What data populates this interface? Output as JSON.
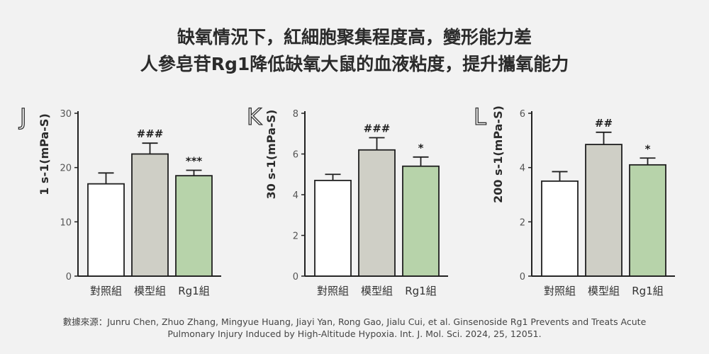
{
  "title": {
    "line1": "缺氧情況下，紅細胞聚集程度高，變形能力差",
    "line2": "人參皂苷Rg1降低缺氧大鼠的血液粘度，提升攜氧能力"
  },
  "colors": {
    "background": "#f2f2f2",
    "control_bar": "#ffffff",
    "model_bar": "#cfcfc6",
    "rg1_bar": "#b7d3aa",
    "axis": "#222222",
    "tick_text": "#555555"
  },
  "chart_data": [
    {
      "type": "bar",
      "panel_label": "J",
      "ylabel": "1 s-1(mPa-S)",
      "categories": [
        "對照組",
        "模型組",
        "Rg1組"
      ],
      "values": [
        17,
        22.5,
        18.5
      ],
      "errors": [
        2,
        2,
        1
      ],
      "annotations": [
        "",
        "###",
        "***"
      ],
      "ylim": [
        0,
        30
      ],
      "yticks": [
        0,
        10,
        20,
        30
      ]
    },
    {
      "type": "bar",
      "panel_label": "K",
      "ylabel": "30 s-1(mPa-S)",
      "categories": [
        "對照組",
        "模型組",
        "Rg1組"
      ],
      "values": [
        4.7,
        6.2,
        5.4
      ],
      "errors": [
        0.3,
        0.6,
        0.45
      ],
      "annotations": [
        "",
        "###",
        "*"
      ],
      "ylim": [
        0,
        8
      ],
      "yticks": [
        0,
        2,
        4,
        6,
        8
      ]
    },
    {
      "type": "bar",
      "panel_label": "L",
      "ylabel": "200 s-1(mPa-S)",
      "categories": [
        "對照組",
        "模型組",
        "Rg1組"
      ],
      "values": [
        3.5,
        4.85,
        4.1
      ],
      "errors": [
        0.35,
        0.45,
        0.25
      ],
      "annotations": [
        "",
        "##",
        "*"
      ],
      "ylim": [
        0,
        6
      ],
      "yticks": [
        0,
        2,
        4,
        6
      ]
    }
  ],
  "source": {
    "line1": "數據來源：Junru Chen, Zhuo Zhang, Mingyue Huang, Jiayi Yan, Rong Gao, Jialu Cui, et al. Ginsenoside Rg1 Prevents and Treats Acute",
    "line2": "Pulmonary Injury Induced by High-Altitude Hypoxia. Int. J. Mol. Sci. 2024, 25, 12051."
  }
}
